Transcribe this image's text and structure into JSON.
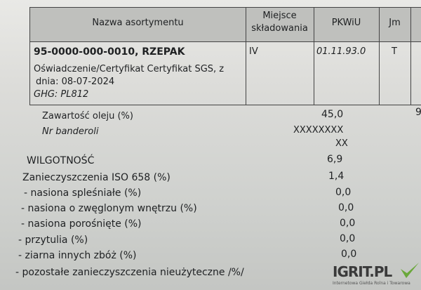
{
  "table": {
    "headers": [
      "Nazwa asortymentu",
      "Miejsce składowania",
      "PKWiU",
      "Jm"
    ],
    "header_miejsce_line1": "Miejsce",
    "header_miejsce_line2": "składowania",
    "row": {
      "name": "95-0000-000-0010, RZEPAK",
      "cert_line1": "Oświadczenie/Certyfikat Certyfikat SGS, z",
      "cert_line2": "dnia: 08-07-2024",
      "ghg": "GHG: PL812",
      "miejsce": "IV",
      "pkwiu": "01.11.93.0",
      "jm": "T"
    }
  },
  "params": [
    {
      "label": "Zawartość oleju (%)",
      "value": "45,0"
    },
    {
      "label": "Nr banderoli",
      "value": "XXXXXXXX",
      "value2": "XX"
    },
    {
      "label": "WILGOTNOŚĆ",
      "value": "6,9"
    },
    {
      "label": "Zanieczyszczenia ISO 658 (%)",
      "value": "1,4"
    },
    {
      "label": "- nasiona spleśniałe (%)",
      "value": "0,0"
    },
    {
      "label": "- nasiona o zwęglonym wnętrzu (%)",
      "value": "0,0"
    },
    {
      "label": "- nasiona porośnięte (%)",
      "value": "0,0"
    },
    {
      "label": "- przytulia (%)",
      "value": "0,0"
    },
    {
      "label": "- ziarna innych zbóż (%)",
      "value": "0,0"
    },
    {
      "label": "- pozostałe zanieczyszczenia  nieużyteczne /%/",
      "value": ""
    }
  ],
  "edge_fragment": "9",
  "watermark": {
    "brand": "IGRIT.PL",
    "tagline": "Internetowa Giełda Rolna i Towarowa",
    "accent": "#6aa83a",
    "dot": "#d9262b"
  }
}
